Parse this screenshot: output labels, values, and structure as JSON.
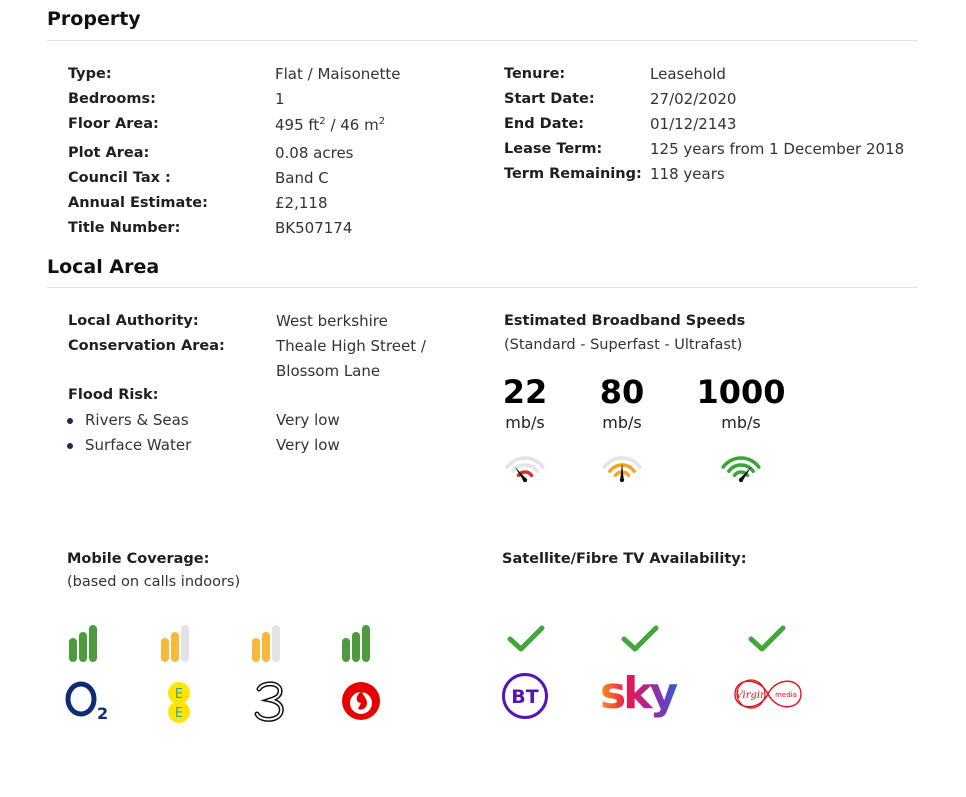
{
  "property": {
    "heading": "Property",
    "left": [
      {
        "label": "Type:",
        "value": "Flat / Maisonette"
      },
      {
        "label": "Bedrooms:",
        "value": "1"
      },
      {
        "label": "Floor Area:",
        "value_parts": [
          "495 ft",
          "2",
          " / 46 m",
          "2"
        ]
      },
      {
        "label": "Plot Area:",
        "value": "0.08 acres"
      },
      {
        "label": "Council Tax :",
        "value": "Band C"
      },
      {
        "label": "Annual Estimate:",
        "value": "£2,118"
      },
      {
        "label": "Title Number:",
        "value": "BK507174"
      }
    ],
    "right": [
      {
        "label": "Tenure:",
        "value": "Leasehold"
      },
      {
        "label": "Start Date:",
        "value": "27/02/2020"
      },
      {
        "label": "End Date:",
        "value": "01/12/2143"
      },
      {
        "label": "Lease Term:",
        "value": "125 years from 1 December 2018"
      },
      {
        "label": "Term Remaining:",
        "value": "118 years"
      }
    ]
  },
  "local_area": {
    "heading": "Local Area",
    "local_authority": {
      "label": "Local Authority:",
      "value": "West berkshire"
    },
    "conservation_area": {
      "label": "Conservation Area:",
      "value_line1": "Theale High Street /",
      "value_line2": "Blossom Lane"
    },
    "flood_risk": {
      "label": "Flood Risk:",
      "items": [
        {
          "label": "Rivers & Seas",
          "value": "Very low"
        },
        {
          "label": "Surface Water",
          "value": "Very low"
        }
      ]
    },
    "broadband": {
      "title": "Estimated Broadband Speeds",
      "subtitle": "(Standard - Superfast - Ultrafast)",
      "speeds": [
        {
          "value": "22",
          "unit": "mb/s",
          "tier": "standard",
          "color": "#d0342c",
          "needle_level": 0.15
        },
        {
          "value": "80",
          "unit": "mb/s",
          "tier": "superfast",
          "color": "#f2a623",
          "needle_level": 0.5
        },
        {
          "value": "1000",
          "unit": "mb/s",
          "tier": "ultrafast",
          "color": "#3aa535",
          "needle_level": 0.85
        }
      ]
    },
    "mobile": {
      "title": "Mobile Coverage:",
      "subtitle": "(based on calls indoors)",
      "networks": [
        {
          "name": "O2",
          "icon": "o2-logo",
          "bars": 3,
          "color": "#4e9a3e"
        },
        {
          "name": "EE",
          "icon": "ee-logo",
          "bars": 2,
          "color": "#f6b93b"
        },
        {
          "name": "Three",
          "icon": "three-logo",
          "bars": 2,
          "color": "#f6b93b"
        },
        {
          "name": "Vodafone",
          "icon": "vodafone-logo",
          "bars": 3,
          "color": "#4e9a3e"
        }
      ]
    },
    "tv": {
      "title": "Satellite/Fibre TV Availability:",
      "providers": [
        {
          "name": "BT",
          "icon": "bt-logo",
          "available": true
        },
        {
          "name": "sky",
          "icon": "sky-logo",
          "available": true
        },
        {
          "name": "Virgin media",
          "icon": "virgin-media-logo",
          "available": true
        }
      ]
    }
  },
  "colors": {
    "check": "#43a63a",
    "bar_empty": "#e3e3e3",
    "bullet": "#1a2a52"
  }
}
